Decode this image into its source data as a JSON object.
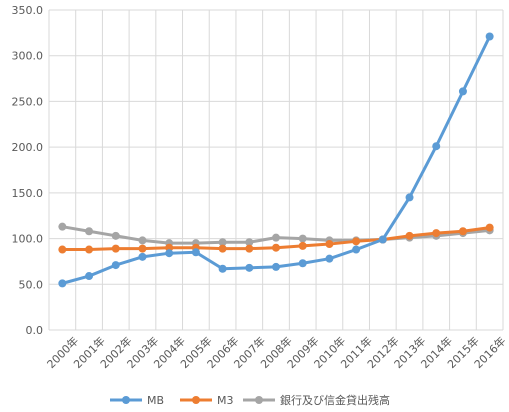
{
  "chart_data": {
    "type": "line",
    "title": "",
    "xlabel": "",
    "ylabel": "",
    "categories": [
      "2000年",
      "2001年",
      "2002年",
      "2003年",
      "2004年",
      "2005年",
      "2006年",
      "2007年",
      "2008年",
      "2009年",
      "2010年",
      "2011年",
      "2012年",
      "2013年",
      "2014年",
      "2015年",
      "2016年"
    ],
    "ylim": [
      0,
      350
    ],
    "yticks": [
      "0.0",
      "50.0",
      "100.0",
      "150.0",
      "200.0",
      "250.0",
      "300.0",
      "350.0"
    ],
    "grid": true,
    "legend_position": "bottom",
    "series": [
      {
        "name": "MB",
        "color": "#5b9bd5",
        "values": [
          51,
          59,
          71,
          80,
          84,
          85,
          67,
          68,
          69,
          73,
          78,
          88,
          99,
          145,
          201,
          261,
          321
        ]
      },
      {
        "name": "M3",
        "color": "#ed7d31",
        "values": [
          88,
          88,
          89,
          89,
          90,
          90,
          89,
          89,
          90,
          92,
          94,
          97,
          99,
          103,
          106,
          108,
          112
        ]
      },
      {
        "name": "銀行及び信金貸出残高",
        "color": "#a5a5a5",
        "values": [
          113,
          108,
          103,
          98,
          95,
          95,
          96,
          96,
          101,
          100,
          98,
          98,
          99,
          101,
          103,
          106,
          109
        ]
      }
    ]
  }
}
